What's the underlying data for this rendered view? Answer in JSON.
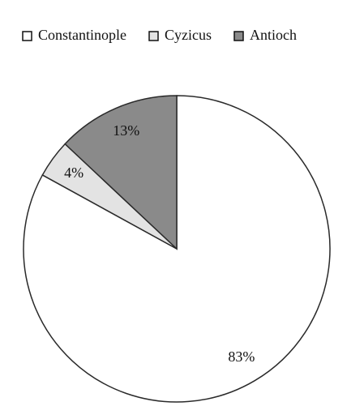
{
  "chart_data": {
    "type": "pie",
    "categories": [
      "Constantinople",
      "Cyzicus",
      "Antioch"
    ],
    "values": [
      83,
      4,
      13
    ],
    "value_labels": [
      "83%",
      "4%",
      "13%"
    ],
    "colors": [
      "#ffffff",
      "#e3e3e3",
      "#8a8a8a"
    ],
    "legend": "top"
  }
}
